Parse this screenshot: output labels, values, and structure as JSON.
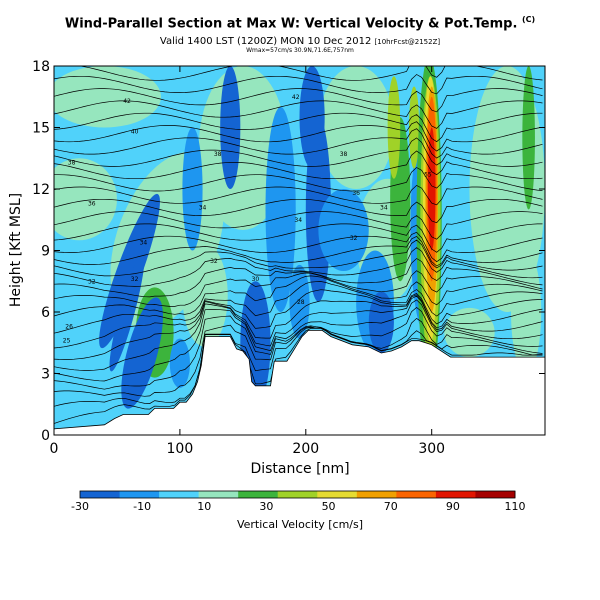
{
  "header": {
    "title": "Wind-Parallel Section at Max W: Vertical Velocity & Pot.Temp.",
    "title_mark": "(C)",
    "subtitle": "Valid 1400 LST (1200Z) MON 10 Dec 2012",
    "subtitle_small": "[10hrFcst@2152Z]",
    "subtitle2": "Wmax=57cm/s 30.9N,71.6E,757nm"
  },
  "colorbar": {
    "label": "Vertical Velocity [cm/s]",
    "ticks": [
      -30,
      -10,
      10,
      30,
      50,
      70,
      90,
      110
    ],
    "colors": [
      "#1464d2",
      "#1e96f0",
      "#50d2fa",
      "#96e6be",
      "#3cb43c",
      "#a0d228",
      "#e6dc32",
      "#f0a000",
      "#fa6400",
      "#e11400",
      "#a50000"
    ]
  },
  "chart_data": {
    "type": "heatmap",
    "title": "Wind-Parallel Section at Max W: Vertical Velocity & Pot.Temp.",
    "xlabel": "Distance [nm]",
    "ylabel": "Height [Kft MSL]",
    "xlim": [
      0,
      390
    ],
    "ylim": [
      0,
      18
    ],
    "xticks": [
      0,
      100,
      200,
      300
    ],
    "yticks": [
      0,
      3,
      6,
      9,
      12,
      15,
      18
    ],
    "fill_variable": "Vertical Velocity [cm/s]",
    "fill_levels": [
      -30,
      -20,
      -10,
      0,
      10,
      20,
      30,
      40,
      50,
      60,
      70,
      80,
      90,
      100,
      110
    ],
    "contour_variable": "Potential temperature",
    "contour_labels": [
      {
        "x": 10,
        "y": 4.6,
        "text": "25"
      },
      {
        "x": 12,
        "y": 5.3,
        "text": "26"
      },
      {
        "x": 30,
        "y": 7.5,
        "text": "32"
      },
      {
        "x": 64,
        "y": 7.6,
        "text": "32"
      },
      {
        "x": 71,
        "y": 9.4,
        "text": "34"
      },
      {
        "x": 127,
        "y": 8.5,
        "text": "32"
      },
      {
        "x": 118,
        "y": 11.1,
        "text": "34"
      },
      {
        "x": 160,
        "y": 7.6,
        "text": "30"
      },
      {
        "x": 196,
        "y": 6.5,
        "text": "28"
      },
      {
        "x": 194,
        "y": 10.5,
        "text": "34"
      },
      {
        "x": 238,
        "y": 9.6,
        "text": "32"
      },
      {
        "x": 262,
        "y": 11.1,
        "text": "34"
      },
      {
        "x": 240,
        "y": 11.8,
        "text": "36"
      },
      {
        "x": 30,
        "y": 11.3,
        "text": "36"
      },
      {
        "x": 14,
        "y": 13.3,
        "text": "38"
      },
      {
        "x": 130,
        "y": 13.7,
        "text": "38"
      },
      {
        "x": 230,
        "y": 13.7,
        "text": "38"
      },
      {
        "x": 64,
        "y": 14.8,
        "text": "40"
      },
      {
        "x": 58,
        "y": 16.3,
        "text": "42"
      },
      {
        "x": 192,
        "y": 16.5,
        "text": "42"
      },
      {
        "x": 297,
        "y": 12.7,
        "text": "55"
      }
    ],
    "terrain": [
      [
        0,
        0.3
      ],
      [
        40,
        0.5
      ],
      [
        48,
        0.8
      ],
      [
        55,
        1.0
      ],
      [
        75,
        1.0
      ],
      [
        80,
        1.3
      ],
      [
        95,
        1.3
      ],
      [
        100,
        1.6
      ],
      [
        105,
        1.6
      ],
      [
        110,
        2.0
      ],
      [
        114,
        2.6
      ],
      [
        117,
        3.4
      ],
      [
        120,
        4.8
      ],
      [
        140,
        4.8
      ],
      [
        145,
        4.2
      ],
      [
        150,
        4.1
      ],
      [
        155,
        3.7
      ],
      [
        157,
        2.6
      ],
      [
        160,
        2.4
      ],
      [
        172,
        2.4
      ],
      [
        175,
        3.6
      ],
      [
        185,
        3.6
      ],
      [
        192,
        4.3
      ],
      [
        197,
        4.8
      ],
      [
        202,
        5.1
      ],
      [
        213,
        5.1
      ],
      [
        220,
        4.8
      ],
      [
        237,
        4.4
      ],
      [
        250,
        4.3
      ],
      [
        260,
        4.0
      ],
      [
        268,
        4.1
      ],
      [
        276,
        4.3
      ],
      [
        284,
        4.6
      ],
      [
        290,
        4.6
      ],
      [
        300,
        4.4
      ],
      [
        315,
        3.8
      ],
      [
        330,
        3.8
      ],
      [
        345,
        3.8
      ],
      [
        370,
        3.8
      ],
      [
        390,
        3.8
      ]
    ]
  }
}
